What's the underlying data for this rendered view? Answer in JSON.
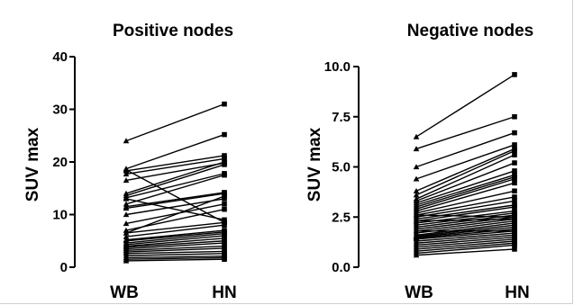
{
  "chart_data": [
    {
      "type": "line",
      "title": "Positive nodes",
      "ylabel": "SUV max",
      "xlabel": "",
      "categories": [
        "WB",
        "HN"
      ],
      "ylim": [
        0,
        40
      ],
      "yticks": [
        "0",
        "10",
        "20",
        "30",
        "40"
      ],
      "grid": false,
      "paired_values": [
        [
          24.0,
          31.0
        ],
        [
          18.7,
          25.2
        ],
        [
          18.3,
          21.2
        ],
        [
          17.7,
          20.6
        ],
        [
          16.5,
          19.8
        ],
        [
          14.0,
          20.0
        ],
        [
          13.6,
          19.5
        ],
        [
          13.2,
          17.8
        ],
        [
          12.0,
          17.5
        ],
        [
          11.5,
          14.2
        ],
        [
          11.2,
          14.0
        ],
        [
          10.0,
          13.0
        ],
        [
          8.3,
          12.0
        ],
        [
          7.0,
          11.0
        ],
        [
          6.5,
          8.5
        ],
        [
          5.8,
          8.0
        ],
        [
          5.2,
          7.0
        ],
        [
          5.0,
          6.7
        ],
        [
          4.6,
          6.4
        ],
        [
          4.3,
          6.0
        ],
        [
          4.0,
          5.5
        ],
        [
          3.8,
          5.0
        ],
        [
          3.5,
          4.6
        ],
        [
          3.2,
          4.0
        ],
        [
          2.9,
          3.6
        ],
        [
          2.6,
          3.0
        ],
        [
          2.2,
          2.6
        ],
        [
          1.8,
          2.1
        ],
        [
          1.5,
          1.8
        ],
        [
          1.2,
          1.5
        ],
        [
          18.5,
          8.5
        ],
        [
          13.0,
          9.0
        ],
        [
          6.5,
          13.5
        ]
      ]
    },
    {
      "type": "line",
      "title": "Negative nodes",
      "ylabel": "SUV max",
      "xlabel": "",
      "categories": [
        "WB",
        "HN"
      ],
      "ylim": [
        0,
        10
      ],
      "yticks": [
        "0.0",
        "2.5",
        "5.0",
        "7.5",
        "10.0"
      ],
      "grid": false,
      "paired_values": [
        [
          6.5,
          9.6
        ],
        [
          5.9,
          7.5
        ],
        [
          5.0,
          6.7
        ],
        [
          4.4,
          6.1
        ],
        [
          3.8,
          5.9
        ],
        [
          3.6,
          5.8
        ],
        [
          3.4,
          5.6
        ],
        [
          3.3,
          5.2
        ],
        [
          3.2,
          4.8
        ],
        [
          3.1,
          4.6
        ],
        [
          3.0,
          4.5
        ],
        [
          2.9,
          4.4
        ],
        [
          2.8,
          4.2
        ],
        [
          2.7,
          3.8
        ],
        [
          2.6,
          3.5
        ],
        [
          2.5,
          3.3
        ],
        [
          2.4,
          3.1
        ],
        [
          2.3,
          3.0
        ],
        [
          2.2,
          2.8
        ],
        [
          2.1,
          2.7
        ],
        [
          2.0,
          2.6
        ],
        [
          1.9,
          2.5
        ],
        [
          1.8,
          2.4
        ],
        [
          1.7,
          2.3
        ],
        [
          1.6,
          2.2
        ],
        [
          1.55,
          2.1
        ],
        [
          1.5,
          2.0
        ],
        [
          1.45,
          1.9
        ],
        [
          1.4,
          1.8
        ],
        [
          1.3,
          1.7
        ],
        [
          1.2,
          1.6
        ],
        [
          1.1,
          1.5
        ],
        [
          1.0,
          1.4
        ],
        [
          0.9,
          1.3
        ],
        [
          0.8,
          1.2
        ],
        [
          0.7,
          1.1
        ],
        [
          0.6,
          0.9
        ],
        [
          2.6,
          2.5
        ],
        [
          2.3,
          2.4
        ],
        [
          1.8,
          1.8
        ]
      ]
    }
  ]
}
